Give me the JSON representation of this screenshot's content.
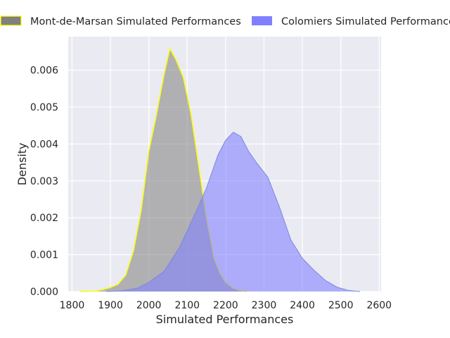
{
  "chart_data": {
    "type": "area",
    "xlabel": "Simulated Performances",
    "ylabel": "Density",
    "xlim": [
      1790,
      2605
    ],
    "ylim": [
      0,
      0.00691
    ],
    "x_ticks": [
      {
        "value": 1800,
        "label": "1800"
      },
      {
        "value": 1900,
        "label": "1900"
      },
      {
        "value": 2000,
        "label": "2000"
      },
      {
        "value": 2100,
        "label": "2100"
      },
      {
        "value": 2200,
        "label": "2200"
      },
      {
        "value": 2300,
        "label": "2300"
      },
      {
        "value": 2400,
        "label": "2400"
      },
      {
        "value": 2500,
        "label": "2500"
      },
      {
        "value": 2600,
        "label": "2600"
      }
    ],
    "y_ticks": [
      {
        "value": 0.0,
        "label": "0.000"
      },
      {
        "value": 0.001,
        "label": "0.001"
      },
      {
        "value": 0.002,
        "label": "0.002"
      },
      {
        "value": 0.003,
        "label": "0.003"
      },
      {
        "value": 0.004,
        "label": "0.004"
      },
      {
        "value": 0.005,
        "label": "0.005"
      },
      {
        "value": 0.006,
        "label": "0.006"
      }
    ],
    "grid": true,
    "legend_placement": "top",
    "background_color": "#eaeaf2",
    "series": [
      {
        "name": "Mont-de-Marsan Simulated Performances",
        "fill_color": "#808080",
        "edge_color": "#ffff00",
        "points": [
          [
            1820,
            0.0
          ],
          [
            1860,
            1e-05
          ],
          [
            1880,
            5e-05
          ],
          [
            1900,
            0.00011
          ],
          [
            1920,
            0.0002
          ],
          [
            1940,
            0.00045
          ],
          [
            1960,
            0.0011
          ],
          [
            1980,
            0.0022
          ],
          [
            2000,
            0.0038
          ],
          [
            2020,
            0.0048
          ],
          [
            2040,
            0.0059
          ],
          [
            2055,
            0.00658
          ],
          [
            2070,
            0.0063
          ],
          [
            2090,
            0.0058
          ],
          [
            2110,
            0.0048
          ],
          [
            2130,
            0.0034
          ],
          [
            2150,
            0.002
          ],
          [
            2170,
            0.0009
          ],
          [
            2185,
            0.0005
          ],
          [
            2200,
            0.00025
          ],
          [
            2220,
            9e-05
          ],
          [
            2240,
            2e-05
          ],
          [
            2255,
            0.0
          ]
        ]
      },
      {
        "name": "Colomiers Simulated Performances",
        "fill_color": "#8080ff",
        "edge_color": "#7a8ad8",
        "points": [
          [
            1890,
            0.0
          ],
          [
            1930,
            2e-05
          ],
          [
            1970,
            9e-05
          ],
          [
            2000,
            0.00025
          ],
          [
            2040,
            0.00055
          ],
          [
            2080,
            0.0012
          ],
          [
            2120,
            0.0021
          ],
          [
            2150,
            0.0028
          ],
          [
            2180,
            0.0037
          ],
          [
            2200,
            0.0041
          ],
          [
            2220,
            0.00432
          ],
          [
            2240,
            0.0042
          ],
          [
            2260,
            0.0038
          ],
          [
            2280,
            0.0035
          ],
          [
            2310,
            0.0031
          ],
          [
            2340,
            0.0023
          ],
          [
            2370,
            0.0014
          ],
          [
            2400,
            0.0009
          ],
          [
            2430,
            0.00058
          ],
          [
            2460,
            0.0003
          ],
          [
            2490,
            0.00012
          ],
          [
            2520,
            3e-05
          ],
          [
            2550,
            0.0
          ]
        ]
      }
    ]
  }
}
